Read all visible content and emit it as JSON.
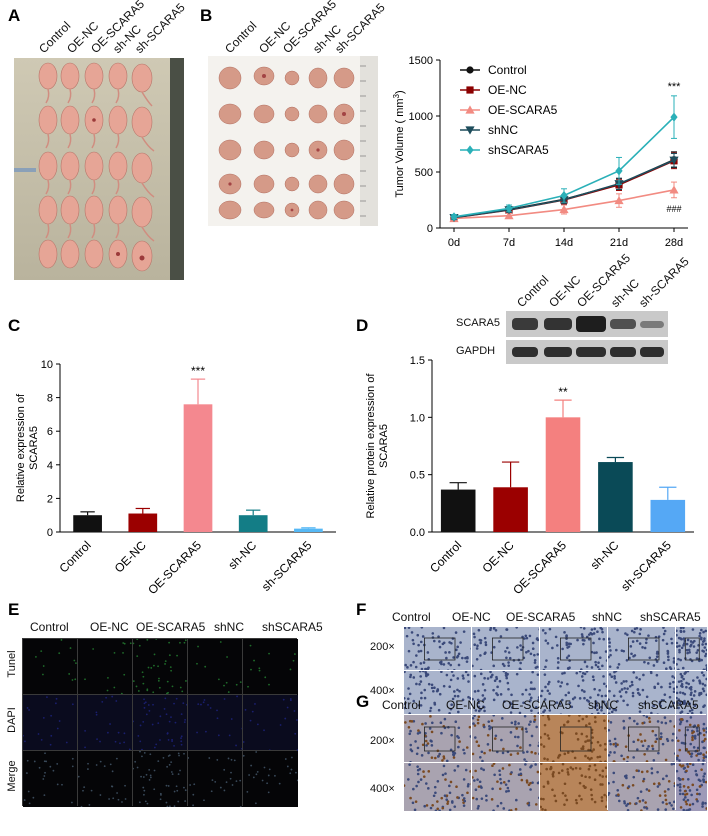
{
  "panels": {
    "a": "A",
    "b": "B",
    "c": "C",
    "d": "D",
    "e": "E",
    "f": "F",
    "g": "G"
  },
  "panel_a": {
    "groups": [
      "Control",
      "OE-NC",
      "OE-SCARA5",
      "sh-NC",
      "sh-SCARA5"
    ]
  },
  "panel_b_photo": {
    "groups": [
      "Control",
      "OE-NC",
      "OE-SCARA5",
      "sh-NC",
      "sh-SCARA5"
    ]
  },
  "panel_b_chart": {
    "chart_data": {
      "type": "line",
      "title": "",
      "xlabel": "",
      "ylabel": "Tumor Volume ( mm³)",
      "ylabel_main": "Tumor Volume ( mm",
      "ylabel_sup": "3",
      "ylabel_end": ")",
      "ylim": [
        0,
        1500
      ],
      "yticks": [
        "0",
        "500",
        "1000",
        "1500"
      ],
      "x": [
        "0d",
        "7d",
        "14d",
        "21d",
        "28d"
      ],
      "series": [
        {
          "name": "Control",
          "color": "#111111",
          "marker": "circle",
          "values": [
            95,
            165,
            255,
            390,
            610
          ],
          "err": [
            20,
            25,
            40,
            50,
            70
          ]
        },
        {
          "name": "OE-NC",
          "color": "#8b0000",
          "marker": "square",
          "values": [
            92,
            160,
            250,
            385,
            600
          ],
          "err": [
            18,
            25,
            40,
            50,
            70
          ]
        },
        {
          "name": "OE-SCARA5",
          "color": "#f28b82",
          "marker": "triangle-up",
          "values": [
            85,
            110,
            165,
            245,
            340
          ],
          "err": [
            15,
            20,
            40,
            60,
            70
          ]
        },
        {
          "name": "shNC",
          "color": "#1e4d5c",
          "marker": "triangle-down",
          "values": [
            93,
            162,
            252,
            395,
            605
          ],
          "err": [
            18,
            22,
            35,
            50,
            60
          ]
        },
        {
          "name": "shSCARA5",
          "color": "#2ab0b8",
          "marker": "diamond",
          "values": [
            100,
            175,
            290,
            510,
            990
          ],
          "err": [
            20,
            30,
            60,
            120,
            190
          ]
        }
      ],
      "annotations": [
        "***",
        "###"
      ]
    }
  },
  "panel_c": {
    "chart_data": {
      "type": "bar",
      "title": "",
      "xlabel": "",
      "ylabel_line1": "Relative expression of",
      "ylabel_line2": "SCARA5",
      "ylim": [
        0,
        10
      ],
      "yticks": [
        "0",
        "2",
        "4",
        "6",
        "8",
        "10"
      ],
      "categories": [
        "Control",
        "OE-NC",
        "OE-SCARA5",
        "sh-NC",
        "sh-SCARA5"
      ],
      "values": [
        1.0,
        1.1,
        7.6,
        1.0,
        0.2
      ],
      "errors": [
        0.2,
        0.3,
        1.5,
        0.3,
        0.05
      ],
      "colors": [
        "#111111",
        "#9b0000",
        "#f4888f",
        "#137d86",
        "#55b8f5"
      ],
      "annotations": [
        "***"
      ]
    }
  },
  "panel_d": {
    "western_blot": {
      "columns": [
        "Control",
        "OE-NC",
        "OE-SCARA5",
        "sh-NC",
        "sh-SCARA5"
      ],
      "rows": [
        "SCARA5",
        "GAPDH"
      ]
    },
    "chart_data": {
      "type": "bar",
      "title": "",
      "xlabel": "",
      "ylabel_line1": "Relative protein expression of",
      "ylabel_line2": "SCARA5",
      "ylim": [
        0,
        1.5
      ],
      "yticks": [
        "0.0",
        "0.5",
        "1.0",
        "1.5"
      ],
      "categories": [
        "Control",
        "OE-NC",
        "OE-SCARA5",
        "sh-NC",
        "sh-SCARA5"
      ],
      "values": [
        0.37,
        0.39,
        1.0,
        0.61,
        0.28
      ],
      "errors": [
        0.06,
        0.22,
        0.15,
        0.04,
        0.11
      ],
      "colors": [
        "#111111",
        "#9b0000",
        "#f4807f",
        "#0a4a57",
        "#55a8f5"
      ],
      "annotations": [
        "**"
      ]
    }
  },
  "panel_e": {
    "columns": [
      "Control",
      "OE-NC",
      "OE-SCARA5",
      "shNC",
      "shSCARA5"
    ],
    "rows": [
      "Tunel",
      "DAPI",
      "Merge"
    ]
  },
  "panel_f": {
    "columns": [
      "Control",
      "OE-NC",
      "OE-SCARA5",
      "shNC",
      "shSCARA5"
    ],
    "rows": [
      "200×",
      "400×"
    ]
  },
  "panel_g": {
    "columns": [
      "Control",
      "OE-NC",
      "OE-SCARA5",
      "shNC",
      "shSCARA5"
    ],
    "rows": [
      "200×",
      "400×"
    ]
  }
}
